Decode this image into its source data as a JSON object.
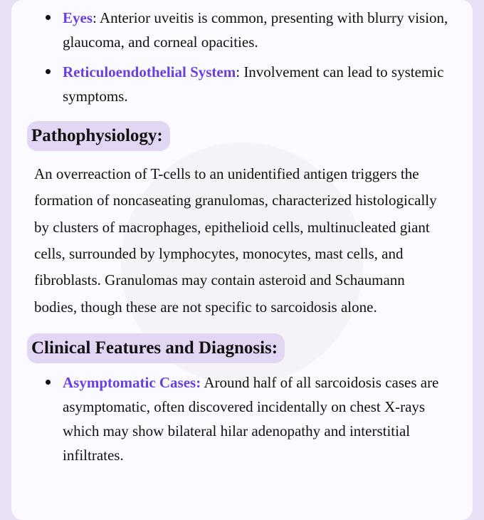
{
  "colors": {
    "page_bg": "#e8e0f5",
    "card_bg": "#fafaff",
    "heading_bg": "#e3d6f5",
    "term_color": "#6a3fe0",
    "text_color": "#111111",
    "watermark_bg": "#f0edf3",
    "watermark_fg": "#ece8f0"
  },
  "typography": {
    "body_font": "Georgia serif",
    "body_size_pt": 16,
    "heading_size_pt": 19,
    "line_height": 1.78
  },
  "bullets_top": [
    {
      "term": "Eyes",
      "text": ": Anterior uveitis is common, presenting with blurry vision, glaucoma, and corneal opacities."
    },
    {
      "term": "Reticuloendothelial System",
      "text": ": Involvement can lead to systemic symptoms."
    }
  ],
  "section1": {
    "heading": "Pathophysiology:",
    "paragraph": "An overreaction of T-cells to an unidentified antigen triggers the formation of noncaseating granulomas, characterized histologically by clusters of macrophages, epithelioid cells, multinucleated giant cells, surrounded by lymphocytes, monocytes, mast cells, and fibroblasts. Granulomas may contain asteroid and Schaumann bodies, though these are not specific to sarcoidosis alone."
  },
  "section2": {
    "heading": "Clinical Features and Diagnosis:",
    "bullets": [
      {
        "term": "Asymptomatic Cases:",
        "text": " Around half of all sarcoidosis cases are asymptomatic, often discovered incidentally on chest X-rays which may show bilateral hilar adenopathy and interstitial infiltrates."
      }
    ]
  }
}
